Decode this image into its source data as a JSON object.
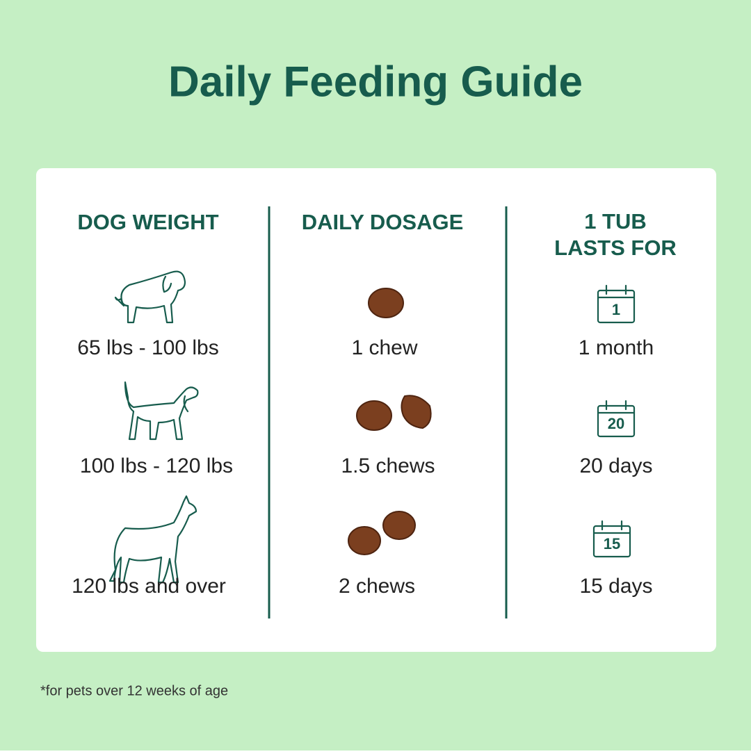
{
  "header": {
    "title": "Daily Feeding Guide"
  },
  "table": {
    "columns": [
      "DOG WEIGHT",
      "DAILY DOSAGE",
      "1 TUB LASTS FOR"
    ],
    "rows": [
      [
        "65 lbs - 100 lbs",
        "1 chew",
        "1 month"
      ],
      [
        "100 lbs - 120 lbs",
        "1.5 chews",
        "20 days"
      ],
      [
        "120 lbs and over",
        "2 chews",
        "15 days"
      ]
    ],
    "calendar_numbers": [
      "1",
      "20",
      "15"
    ]
  },
  "footnote": "*for pets over 12 weeks of age"
}
